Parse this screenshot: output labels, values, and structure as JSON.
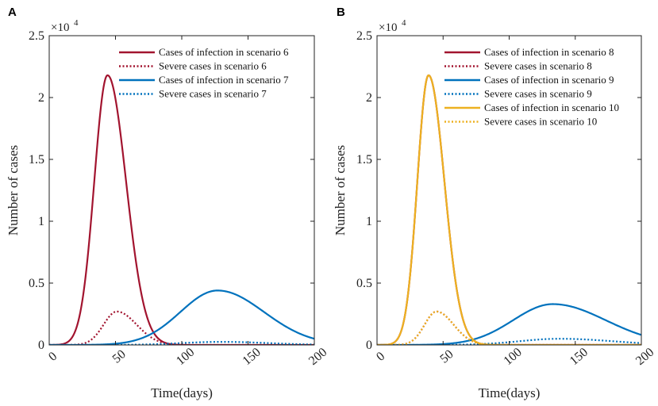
{
  "chart_data": [
    {
      "type": "line",
      "panel_label": "A",
      "xlabel": "Time(days)",
      "ylabel": "Number of cases",
      "xlim": [
        0,
        200
      ],
      "ylim": [
        0,
        2.5
      ],
      "y_multiplier": "×10",
      "y_exponent": "4",
      "x_ticks": [
        0,
        50,
        100,
        150,
        200
      ],
      "y_ticks": [
        0,
        0.5,
        1,
        1.5,
        2,
        2.5
      ],
      "x_tick_labels": [
        "0",
        "50",
        "100",
        "150",
        "200"
      ],
      "y_tick_labels": [
        "0",
        "0.5",
        "1",
        "1.5",
        "2",
        "2.5"
      ],
      "legend_position": "top-right",
      "series": [
        {
          "name": "Cases of infection in scenario 6",
          "color": "#A2142F",
          "style": "solid",
          "peak": 2.18,
          "peak_day": 44,
          "sigma_left": 10,
          "sigma_right": 14
        },
        {
          "name": "Severe cases in scenario 6",
          "color": "#A2142F",
          "style": "dotted",
          "peak": 0.27,
          "peak_day": 51,
          "sigma_left": 10,
          "sigma_right": 15
        },
        {
          "name": "Cases of infection in scenario 7",
          "color": "#0072BD",
          "style": "solid",
          "peak": 0.44,
          "peak_day": 127,
          "sigma_left": 28,
          "sigma_right": 35
        },
        {
          "name": "Severe cases in scenario 7",
          "color": "#0072BD",
          "style": "dotted",
          "peak": 0.025,
          "peak_day": 130,
          "sigma_left": 30,
          "sigma_right": 35
        }
      ]
    },
    {
      "type": "line",
      "panel_label": "B",
      "xlabel": "Time(days)",
      "ylabel": "Number of cases",
      "xlim": [
        0,
        200
      ],
      "ylim": [
        0,
        2.5
      ],
      "y_multiplier": "×10",
      "y_exponent": "4",
      "x_ticks": [
        0,
        50,
        100,
        150,
        200
      ],
      "y_ticks": [
        0,
        0.5,
        1,
        1.5,
        2,
        2.5
      ],
      "x_tick_labels": [
        "0",
        "50",
        "100",
        "150",
        "200"
      ],
      "y_tick_labels": [
        "0",
        "0.5",
        "1",
        "1.5",
        "2",
        "2.5"
      ],
      "legend_position": "top-right",
      "series": [
        {
          "name": "Cases of infection in scenario 8",
          "color": "#A2142F",
          "style": "solid",
          "peak": 2.18,
          "peak_day": 39,
          "sigma_left": 8.5,
          "sigma_right": 12
        },
        {
          "name": "Severe cases in scenario 8",
          "color": "#A2142F",
          "style": "dotted",
          "peak": 0.27,
          "peak_day": 45,
          "sigma_left": 9,
          "sigma_right": 13
        },
        {
          "name": "Cases of infection in scenario 9",
          "color": "#0072BD",
          "style": "solid",
          "peak": 0.33,
          "peak_day": 133,
          "sigma_left": 30,
          "sigma_right": 40
        },
        {
          "name": "Severe cases in scenario 9",
          "color": "#0072BD",
          "style": "dotted",
          "peak": 0.05,
          "peak_day": 138,
          "sigma_left": 30,
          "sigma_right": 40
        },
        {
          "name": "Cases of infection in scenario 10",
          "color": "#EDB120",
          "style": "solid",
          "peak": 2.18,
          "peak_day": 39,
          "sigma_left": 8.5,
          "sigma_right": 12
        },
        {
          "name": "Severe cases in scenario 10",
          "color": "#EDB120",
          "style": "dotted",
          "peak": 0.27,
          "peak_day": 45,
          "sigma_left": 9,
          "sigma_right": 13
        }
      ]
    }
  ]
}
